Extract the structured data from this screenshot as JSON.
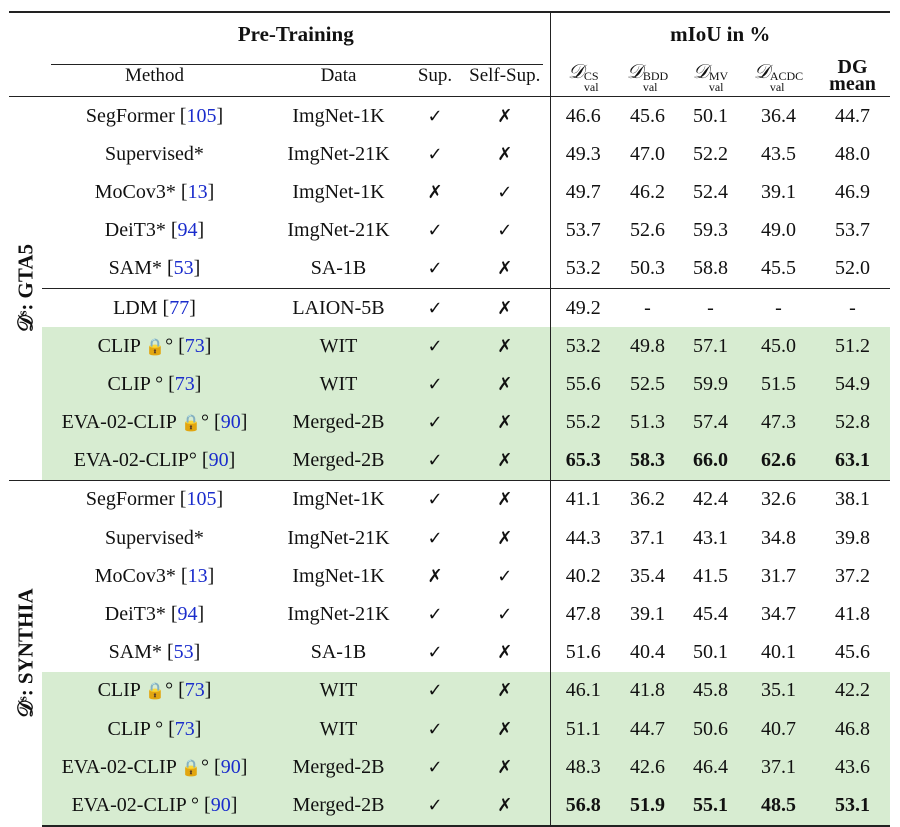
{
  "header": {
    "pretraining": "Pre-Training",
    "miou": "mIoU in %",
    "method": "Method",
    "data": "Data",
    "sup": "Sup.",
    "selfsup": "Self-Sup.",
    "d_symbol": "𝒟",
    "val": "val",
    "cs": "CS",
    "bdd": "BDD",
    "mv": "MV",
    "acdc": "ACDC",
    "dg": "DG",
    "mean": "mean"
  },
  "groups": {
    "gta5": "𝒟ˢ: GTA5",
    "synthia": "𝒟ˢ: SYNTHIA"
  },
  "icons": {
    "check": "checkmark-icon",
    "cross": "cross-icon",
    "lock": "lock-icon"
  },
  "colors": {
    "highlight": "#d7ecd1",
    "cite": "#1a2ccc"
  },
  "rows_gta5": [
    {
      "method": "SegFormer ",
      "cite": "105",
      "mark": "",
      "data": "ImgNet-1K",
      "sup": "✓",
      "self": "✗",
      "cs": "46.6",
      "bdd": "45.6",
      "mv": "50.1",
      "acdc": "36.4",
      "dg": "44.7"
    },
    {
      "method": "Supervised*",
      "cite": "",
      "mark": "",
      "data": "ImgNet-21K",
      "sup": "✓",
      "self": "✗",
      "cs": "49.3",
      "bdd": "47.0",
      "mv": "52.2",
      "acdc": "43.5",
      "dg": "48.0"
    },
    {
      "method": "MoCov3* ",
      "cite": "13",
      "mark": "",
      "data": "ImgNet-1K",
      "sup": "✗",
      "self": "✓",
      "cs": "49.7",
      "bdd": "46.2",
      "mv": "52.4",
      "acdc": "39.1",
      "dg": "46.9"
    },
    {
      "method": "DeiT3* ",
      "cite": "94",
      "mark": "",
      "data": "ImgNet-21K",
      "sup": "✓",
      "self": "✓",
      "cs": "53.7",
      "bdd": "52.6",
      "mv": "59.3",
      "acdc": "49.0",
      "dg": "53.7"
    },
    {
      "method": "SAM* ",
      "cite": "53",
      "mark": "",
      "data": "SA-1B",
      "sup": "✓",
      "self": "✗",
      "cs": "53.2",
      "bdd": "50.3",
      "mv": "58.8",
      "acdc": "45.5",
      "dg": "52.0"
    },
    {
      "method": "LDM ",
      "cite": "77",
      "mark": "",
      "data": "LAION-5B",
      "sup": "✓",
      "self": "✗",
      "cs": "49.2",
      "bdd": "-",
      "mv": "-",
      "acdc": "-",
      "dg": "-"
    },
    {
      "method": "CLIP ",
      "cite": "73",
      "mark": "lock",
      "data": "WIT",
      "sup": "✓",
      "self": "✗",
      "cs": "53.2",
      "bdd": "49.8",
      "mv": "57.1",
      "acdc": "45.0",
      "dg": "51.2"
    },
    {
      "method": "CLIP ",
      "cite": "73",
      "mark": "deg",
      "data": "WIT",
      "sup": "✓",
      "self": "✗",
      "cs": "55.6",
      "bdd": "52.5",
      "mv": "59.9",
      "acdc": "51.5",
      "dg": "54.9"
    },
    {
      "method": "EVA-02-CLIP ",
      "cite": "90",
      "mark": "lock",
      "data": "Merged-2B",
      "sup": "✓",
      "self": "✗",
      "cs": "55.2",
      "bdd": "51.3",
      "mv": "57.4",
      "acdc": "47.3",
      "dg": "52.8"
    },
    {
      "method": "EVA-02-CLIP",
      "cite": "90",
      "mark": "deg2",
      "data": "Merged-2B",
      "sup": "✓",
      "self": "✗",
      "cs": "65.3",
      "bdd": "58.3",
      "mv": "66.0",
      "acdc": "62.6",
      "dg": "63.1"
    }
  ],
  "rows_synthia": [
    {
      "method": "SegFormer ",
      "cite": "105",
      "mark": "",
      "data": "ImgNet-1K",
      "sup": "✓",
      "self": "✗",
      "cs": "41.1",
      "bdd": "36.2",
      "mv": "42.4",
      "acdc": "32.6",
      "dg": "38.1"
    },
    {
      "method": "Supervised*",
      "cite": "",
      "mark": "",
      "data": "ImgNet-21K",
      "sup": "✓",
      "self": "✗",
      "cs": "44.3",
      "bdd": "37.1",
      "mv": "43.1",
      "acdc": "34.8",
      "dg": "39.8"
    },
    {
      "method": "MoCov3* ",
      "cite": "13",
      "mark": "",
      "data": "ImgNet-1K",
      "sup": "✗",
      "self": "✓",
      "cs": "40.2",
      "bdd": "35.4",
      "mv": "41.5",
      "acdc": "31.7",
      "dg": "37.2"
    },
    {
      "method": "DeiT3* ",
      "cite": "94",
      "mark": "",
      "data": "ImgNet-21K",
      "sup": "✓",
      "self": "✓",
      "cs": "47.8",
      "bdd": "39.1",
      "mv": "45.4",
      "acdc": "34.7",
      "dg": "41.8"
    },
    {
      "method": "SAM* ",
      "cite": "53",
      "mark": "",
      "data": "SA-1B",
      "sup": "✓",
      "self": "✗",
      "cs": "51.6",
      "bdd": "40.4",
      "mv": "50.1",
      "acdc": "40.1",
      "dg": "45.6"
    },
    {
      "method": "CLIP ",
      "cite": "73",
      "mark": "lock",
      "data": "WIT",
      "sup": "✓",
      "self": "✗",
      "cs": "46.1",
      "bdd": "41.8",
      "mv": "45.8",
      "acdc": "35.1",
      "dg": "42.2"
    },
    {
      "method": "CLIP ",
      "cite": "73",
      "mark": "deg",
      "data": "WIT",
      "sup": "✓",
      "self": "✗",
      "cs": "51.1",
      "bdd": "44.7",
      "mv": "50.6",
      "acdc": "40.7",
      "dg": "46.8"
    },
    {
      "method": "EVA-02-CLIP ",
      "cite": "90",
      "mark": "lock",
      "data": "Merged-2B",
      "sup": "✓",
      "self": "✗",
      "cs": "48.3",
      "bdd": "42.6",
      "mv": "46.4",
      "acdc": "37.1",
      "dg": "43.6"
    },
    {
      "method": "EVA-02-CLIP ",
      "cite": "90",
      "mark": "deg",
      "data": "Merged-2B",
      "sup": "✓",
      "self": "✗",
      "cs": "56.8",
      "bdd": "51.9",
      "mv": "55.1",
      "acdc": "48.5",
      "dg": "53.1"
    }
  ]
}
